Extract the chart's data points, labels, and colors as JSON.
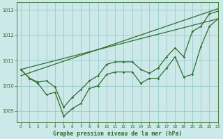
{
  "background_color": "#cce8e8",
  "grid_color": "#99cccc",
  "line_color": "#2d6e2d",
  "title": "Graphe pression niveau de la mer (hPa)",
  "xlim": [
    -0.5,
    23
  ],
  "ylim": [
    1008.55,
    1013.3
  ],
  "yticks": [
    1009,
    1010,
    1011,
    1012,
    1013
  ],
  "xticks": [
    0,
    1,
    2,
    3,
    4,
    5,
    6,
    7,
    8,
    9,
    10,
    11,
    12,
    13,
    14,
    15,
    16,
    17,
    18,
    19,
    20,
    21,
    22,
    23
  ],
  "x": [
    0,
    1,
    2,
    3,
    4,
    5,
    6,
    7,
    8,
    9,
    10,
    11,
    12,
    13,
    14,
    15,
    16,
    17,
    18,
    19,
    20,
    21,
    22,
    23
  ],
  "line_jagged": [
    1010.65,
    1010.3,
    1010.1,
    1009.65,
    1009.75,
    1008.8,
    1009.1,
    1009.3,
    1009.9,
    1010.0,
    1010.45,
    1010.55,
    1010.55,
    1010.55,
    1010.1,
    1010.3,
    1010.3,
    1010.7,
    1011.15,
    1010.35,
    1010.45,
    1011.55,
    1012.35,
    1012.65
  ],
  "line_upper": [
    1010.65,
    1010.3,
    1010.15,
    1010.2,
    1009.95,
    1009.15,
    1009.55,
    1009.85,
    1010.2,
    1010.4,
    1010.85,
    1010.95,
    1010.95,
    1010.95,
    1010.65,
    1010.5,
    1010.7,
    1011.15,
    1011.5,
    1011.15,
    1012.15,
    1012.35,
    1012.85,
    1012.95
  ],
  "trend1_x": [
    0,
    23
  ],
  "trend1_y": [
    1010.65,
    1012.65
  ],
  "trend2_x": [
    0,
    23
  ],
  "trend2_y": [
    1010.4,
    1013.05
  ]
}
